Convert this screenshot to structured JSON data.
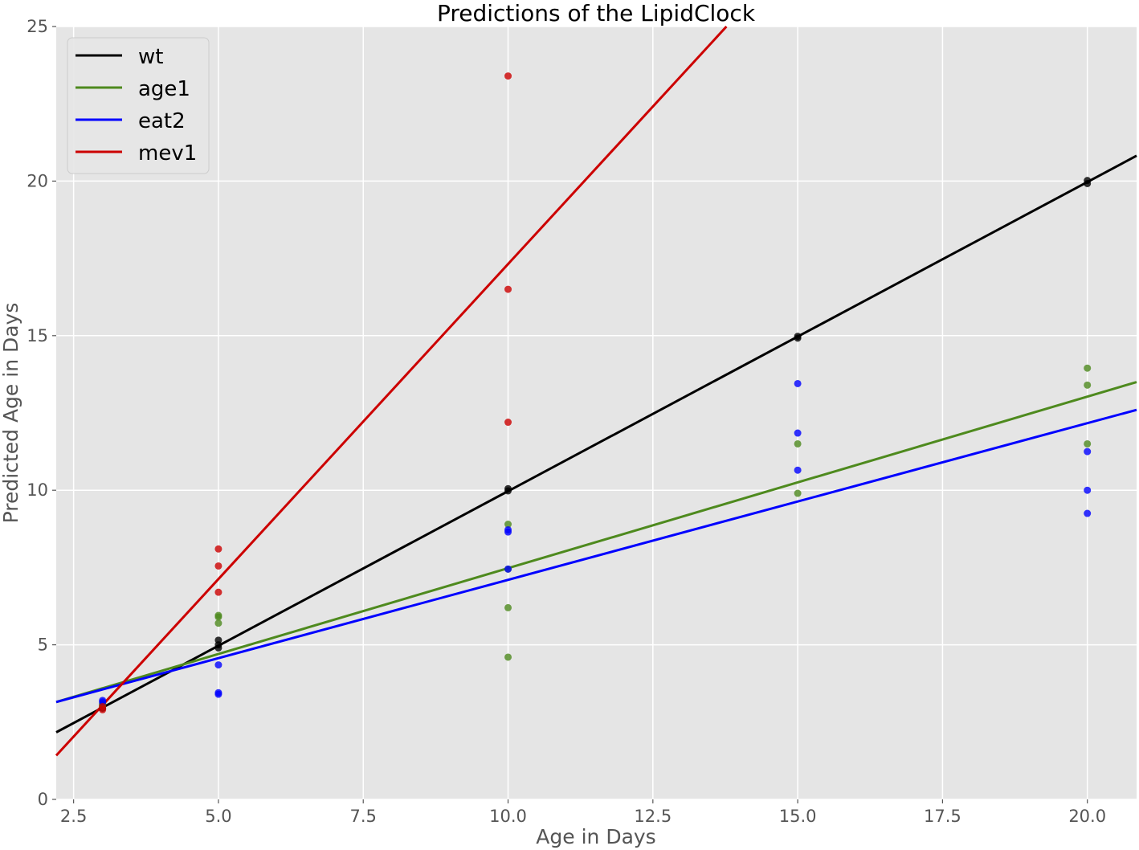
{
  "chart_data": {
    "type": "scatter",
    "title": "Predictions of the LipidClock",
    "xlabel": "Age in Days",
    "ylabel": "Predicted Age in Days",
    "xlim": [
      2.2,
      20.85
    ],
    "ylim": [
      0,
      25
    ],
    "xticks": [
      2.5,
      5.0,
      7.5,
      10.0,
      12.5,
      15.0,
      17.5,
      20.0
    ],
    "xtick_labels": [
      "2.5",
      "5.0",
      "7.5",
      "10.0",
      "12.5",
      "15.0",
      "17.5",
      "20.0"
    ],
    "yticks": [
      0,
      5,
      10,
      15,
      20,
      25
    ],
    "ytick_labels": [
      "0",
      "5",
      "10",
      "15",
      "20",
      "25"
    ],
    "grid": true,
    "legend_position": "top-left",
    "series": [
      {
        "name": "wt",
        "color": "#000000",
        "fit_line": [
          [
            2.2,
            2.17
          ],
          [
            20.85,
            20.82
          ]
        ],
        "points": [
          [
            3,
            2.95
          ],
          [
            3,
            3.05
          ],
          [
            5,
            4.9
          ],
          [
            5,
            5.0
          ],
          [
            5,
            5.15
          ],
          [
            10,
            9.98
          ],
          [
            10,
            10.05
          ],
          [
            15,
            14.92
          ],
          [
            15,
            14.98
          ],
          [
            20,
            19.92
          ],
          [
            20,
            20.02
          ]
        ]
      },
      {
        "name": "age1",
        "color": "#4e8a1e",
        "fit_line": [
          [
            2.2,
            3.15
          ],
          [
            20.85,
            13.5
          ]
        ],
        "points": [
          [
            3,
            3.0
          ],
          [
            3,
            3.1
          ],
          [
            5,
            5.7
          ],
          [
            5,
            5.9
          ],
          [
            5,
            5.95
          ],
          [
            10,
            4.6
          ],
          [
            10,
            6.2
          ],
          [
            10,
            8.9
          ],
          [
            10,
            7.45
          ],
          [
            15,
            9.9
          ],
          [
            15,
            11.5
          ],
          [
            20,
            11.5
          ],
          [
            20,
            13.4
          ],
          [
            20,
            13.95
          ]
        ]
      },
      {
        "name": "eat2",
        "color": "#0000ff",
        "fit_line": [
          [
            2.2,
            3.15
          ],
          [
            20.85,
            12.6
          ]
        ],
        "points": [
          [
            3,
            3.15
          ],
          [
            3,
            3.2
          ],
          [
            5,
            3.4
          ],
          [
            5,
            3.45
          ],
          [
            5,
            4.35
          ],
          [
            10,
            7.45
          ],
          [
            10,
            8.65
          ],
          [
            10,
            8.72
          ],
          [
            15,
            10.65
          ],
          [
            15,
            11.85
          ],
          [
            15,
            13.45
          ],
          [
            20,
            9.25
          ],
          [
            20,
            10.0
          ],
          [
            20,
            11.25
          ]
        ]
      },
      {
        "name": "mev1",
        "color": "#cc0000",
        "fit_line": [
          [
            2.2,
            1.42
          ],
          [
            13.77,
            25.0
          ]
        ],
        "points": [
          [
            3,
            2.9
          ],
          [
            3,
            3.0
          ],
          [
            5,
            6.7
          ],
          [
            5,
            7.55
          ],
          [
            5,
            8.1
          ],
          [
            10,
            12.2
          ],
          [
            10,
            16.5
          ],
          [
            10,
            23.4
          ]
        ]
      }
    ]
  }
}
